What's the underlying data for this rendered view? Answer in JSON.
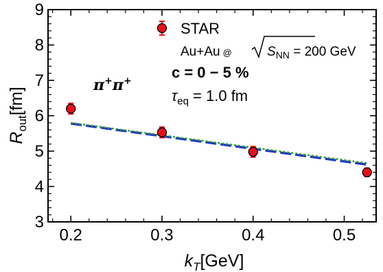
{
  "chart_data": {
    "type": "scatter",
    "xlabel": {
      "main": "k",
      "sub": "T",
      "unit": "[GeV]"
    },
    "ylabel": {
      "main": "R",
      "sub": "out",
      "unit": "[fm]"
    },
    "xlim": [
      0.175,
      0.535
    ],
    "ylim": [
      3,
      9
    ],
    "xticks": [
      0.2,
      0.3,
      0.4,
      0.5
    ],
    "xtick_labels": [
      "0.2",
      "0.3",
      "0.4",
      "0.5"
    ],
    "yticks": [
      3,
      4,
      5,
      6,
      7,
      8,
      9
    ],
    "ytick_labels": [
      "3",
      "4",
      "5",
      "6",
      "7",
      "8",
      "9"
    ],
    "grid": false,
    "series": [
      {
        "name": "STAR",
        "kind": "points",
        "color": "#e8101a",
        "x": [
          0.2,
          0.3,
          0.4,
          0.525
        ],
        "y": [
          6.2,
          5.53,
          4.98,
          4.4
        ],
        "yerr": [
          0.15,
          0.15,
          0.15,
          0.12
        ]
      },
      {
        "kind": "line",
        "style": "dashed",
        "color": "#1f35c9",
        "x": [
          0.2,
          0.525
        ],
        "y": [
          5.78,
          4.62
        ]
      },
      {
        "kind": "line",
        "style": "dotted",
        "color": "#2e9a2e",
        "x": [
          0.2,
          0.525
        ],
        "y": [
          5.8,
          4.66
        ]
      }
    ],
    "legend": {
      "position": "top-right",
      "series_label": "STAR",
      "system_prefix": "Au+Au",
      "at": "@",
      "energy_symbol": "S",
      "energy_sub": "NN",
      "energy_value": " = 200 GeV"
    },
    "annotations": {
      "particle": "π",
      "particle_sup": "+",
      "centrality": "c = 0 − 5 %",
      "tau_symbol": "τ",
      "tau_sub": "eq",
      "tau_value": " = 1.0 fm"
    }
  }
}
